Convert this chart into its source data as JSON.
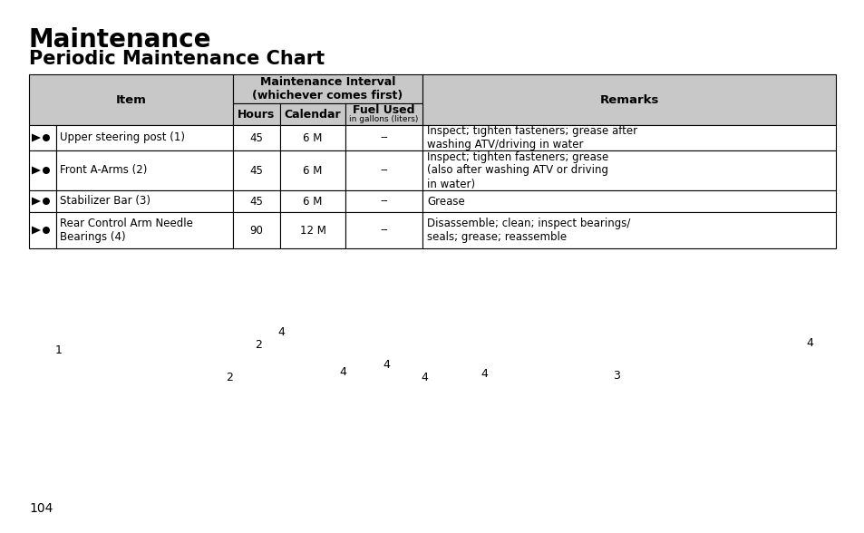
{
  "title1": "Maintenance",
  "title2": "Periodic Maintenance Chart",
  "page_number": "104",
  "background_color": "#ffffff",
  "header_bg": "#c8c8c8",
  "headers": {
    "col1": "Item",
    "col2_main": "Maintenance Interval",
    "col2_sub": "(whichever comes first)",
    "col2a": "Hours",
    "col2b": "Calendar",
    "col2c": "Fuel Used",
    "col2c_sub": "in gallons (liters)",
    "col3": "Remarks"
  },
  "rows": [
    {
      "item": "Upper steering post (1)",
      "hours": "45",
      "calendar": "6 M",
      "fuel": "--",
      "remarks": "Inspect; tighten fasteners; grease after\nwashing ATV/driving in water"
    },
    {
      "item": "Front A-Arms (2)",
      "hours": "45",
      "calendar": "6 M",
      "fuel": "--",
      "remarks": "Inspect; tighten fasteners; grease\n(also after washing ATV or driving\nin water)"
    },
    {
      "item": "Stabilizer Bar (3)",
      "hours": "45",
      "calendar": "6 M",
      "fuel": "--",
      "remarks": "Grease"
    },
    {
      "item": "Rear Control Arm Needle\nBearings (4)",
      "hours": "90",
      "calendar": "12 M",
      "fuel": "--",
      "remarks": "Disassemble; clean; inspect bearings/\nseals; grease; reassemble"
    }
  ],
  "title1_fontsize": 20,
  "title2_fontsize": 15,
  "header_fontsize": 9,
  "cell_fontsize": 8.5,
  "small_fontsize": 6.5,
  "num_label_positions": [
    [
      65,
      202,
      "1"
    ],
    [
      253,
      172,
      "2"
    ],
    [
      285,
      208,
      "2"
    ],
    [
      310,
      222,
      "4"
    ],
    [
      378,
      178,
      "4"
    ],
    [
      426,
      186,
      "4"
    ],
    [
      468,
      172,
      "4"
    ],
    [
      534,
      175,
      "4"
    ],
    [
      680,
      173,
      "3"
    ],
    [
      893,
      210,
      "4"
    ]
  ]
}
